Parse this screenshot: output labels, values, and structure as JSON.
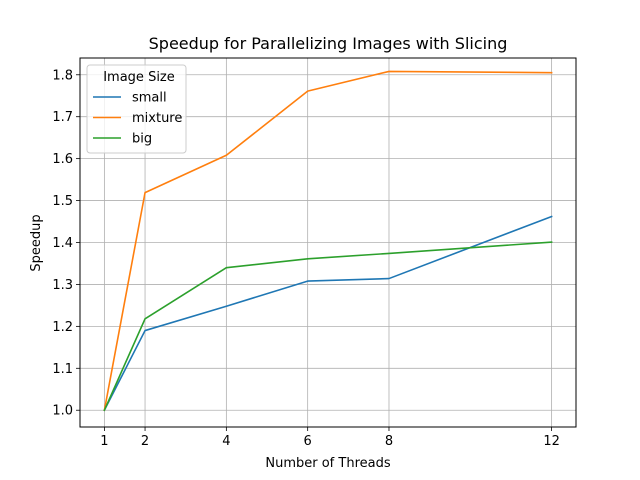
{
  "chart_data": {
    "type": "line",
    "title": "Speedup for Parallelizing Images with Slicing",
    "xlabel": "Number of Threads",
    "ylabel": "Speedup",
    "x": [
      1,
      2,
      4,
      6,
      8,
      12
    ],
    "xticks": [
      1,
      2,
      4,
      6,
      8,
      12
    ],
    "xlim": [
      0.4,
      12.6
    ],
    "yticks": [
      1.0,
      1.1,
      1.2,
      1.3,
      1.4,
      1.5,
      1.6,
      1.7,
      1.8
    ],
    "ylim": [
      0.96,
      1.84
    ],
    "grid": true,
    "legend": {
      "title": "Image Size",
      "placement": "upper-left"
    },
    "series": [
      {
        "name": "small",
        "color": "#1f77b4",
        "values": [
          1.0,
          1.19,
          1.248,
          1.308,
          1.314,
          1.462
        ]
      },
      {
        "name": "mixture",
        "color": "#ff7f0e",
        "values": [
          1.0,
          1.519,
          1.608,
          1.761,
          1.808,
          1.805
        ]
      },
      {
        "name": "big",
        "color": "#2ca02c",
        "values": [
          1.0,
          1.218,
          1.34,
          1.361,
          1.374,
          1.401
        ]
      }
    ]
  }
}
